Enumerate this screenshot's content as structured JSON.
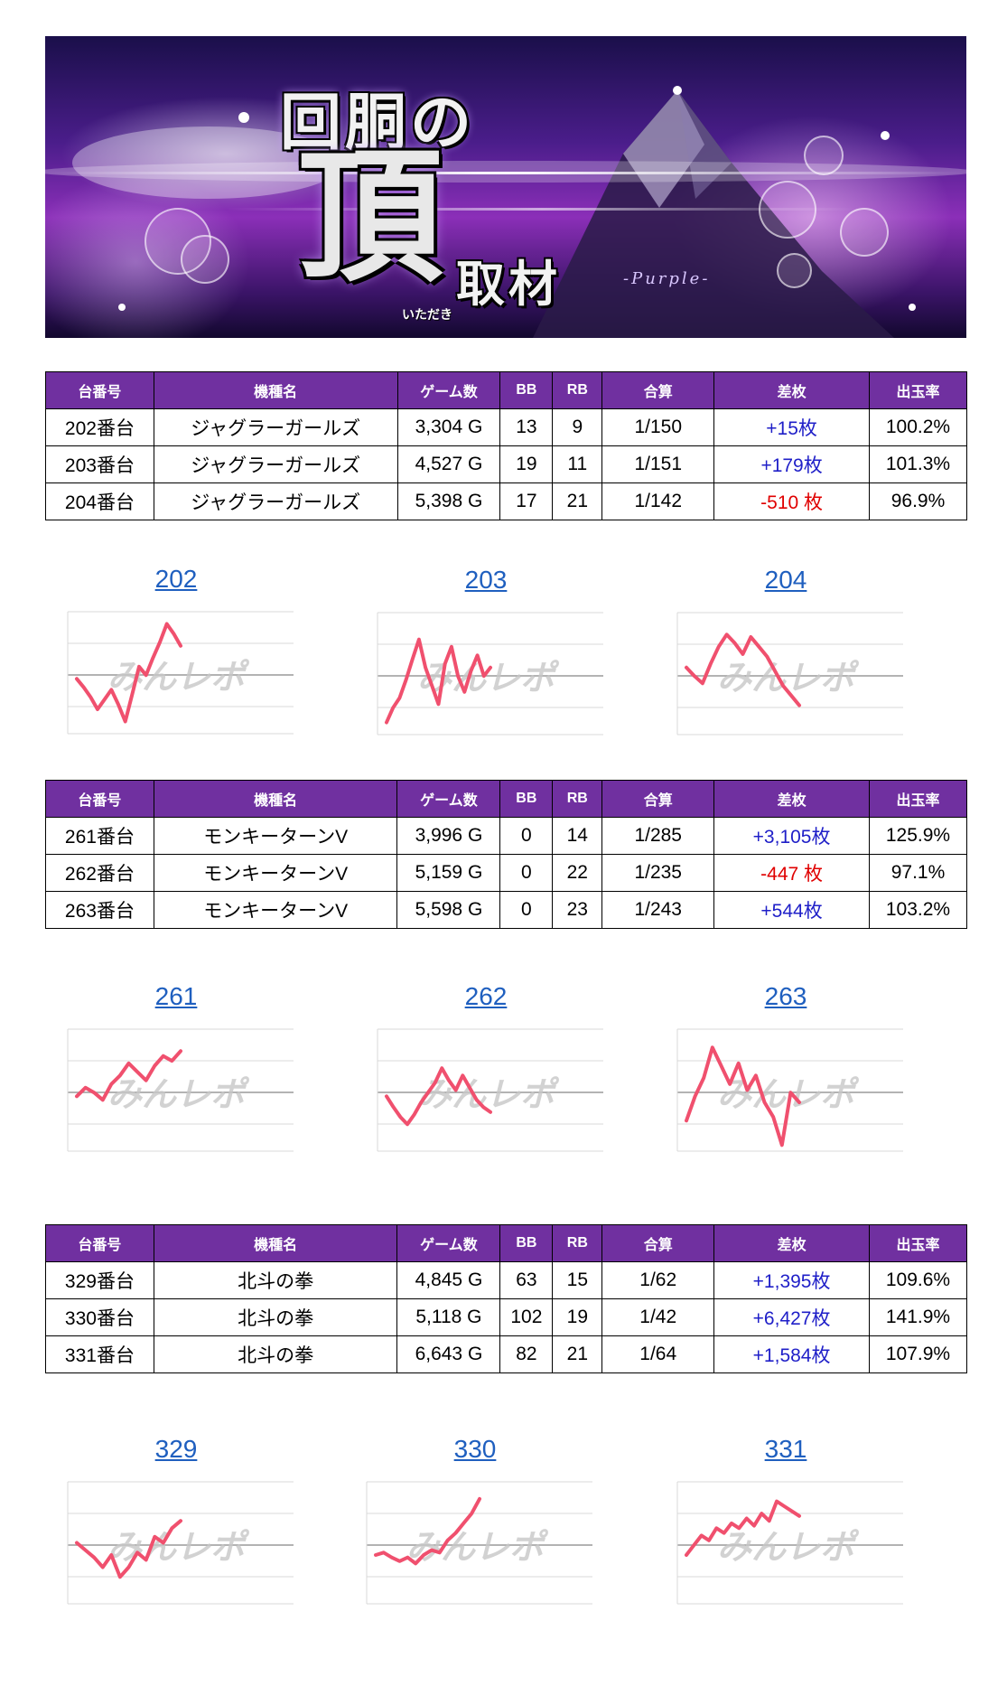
{
  "banner": {
    "title_top": "回胴の",
    "title_main": "頂",
    "title_ruby": "いただき",
    "title_sub": "取材",
    "tag": "-Purple-"
  },
  "columns": [
    "台番号",
    "機種名",
    "ゲーム数",
    "BB",
    "RB",
    "合算",
    "差枚",
    "出玉率"
  ],
  "watermark": "みんレポ",
  "colors": {
    "header": "#7030a0",
    "positive": "#1f1fc8",
    "negative": "#e00000",
    "line": "#f0506e",
    "link": "#1f5fbf"
  },
  "groups": [
    {
      "rows": [
        {
          "no": "202番台",
          "model": "ジャグラーガールズ",
          "games": "3,304 G",
          "bb": "13",
          "rb": "9",
          "total": "1/150",
          "diff": "+15枚",
          "sign": "pos",
          "rate": "100.2%"
        },
        {
          "no": "203番台",
          "model": "ジャグラーガールズ",
          "games": "4,527 G",
          "bb": "19",
          "rb": "11",
          "total": "1/151",
          "diff": "+179枚",
          "sign": "pos",
          "rate": "101.3%"
        },
        {
          "no": "204番台",
          "model": "ジャグラーガールズ",
          "games": "5,398 G",
          "bb": "17",
          "rb": "21",
          "total": "1/142",
          "diff": "-510 枚",
          "sign": "neg",
          "rate": "96.9%"
        }
      ],
      "graphs": [
        {
          "label": "202",
          "values": [
            0.45,
            0.38,
            0.3,
            0.2,
            0.28,
            0.36,
            0.24,
            0.1,
            0.32,
            0.55,
            0.48,
            0.62,
            0.75,
            0.9,
            0.82,
            0.72
          ]
        },
        {
          "label": "203",
          "values": [
            0.1,
            0.22,
            0.3,
            0.45,
            0.62,
            0.78,
            0.55,
            0.4,
            0.25,
            0.58,
            0.72,
            0.48,
            0.35,
            0.52,
            0.65,
            0.48,
            0.55
          ]
        },
        {
          "label": "204",
          "values": [
            0.55,
            0.48,
            0.42,
            0.58,
            0.72,
            0.82,
            0.75,
            0.66,
            0.8,
            0.72,
            0.64,
            0.52,
            0.4,
            0.32,
            0.24
          ]
        }
      ]
    },
    {
      "rows": [
        {
          "no": "261番台",
          "model": "モンキーターンV",
          "games": "3,996 G",
          "bb": "0",
          "rb": "14",
          "total": "1/285",
          "diff": "+3,105枚",
          "sign": "pos",
          "rate": "125.9%"
        },
        {
          "no": "262番台",
          "model": "モンキーターンV",
          "games": "5,159 G",
          "bb": "0",
          "rb": "22",
          "total": "1/235",
          "diff": "-447 枚",
          "sign": "neg",
          "rate": "97.1%"
        },
        {
          "no": "263番台",
          "model": "モンキーターンV",
          "games": "5,598 G",
          "bb": "0",
          "rb": "23",
          "total": "1/243",
          "diff": "+544枚",
          "sign": "pos",
          "rate": "103.2%"
        }
      ],
      "graphs": [
        {
          "label": "261",
          "values": [
            0.45,
            0.52,
            0.48,
            0.42,
            0.55,
            0.62,
            0.72,
            0.65,
            0.58,
            0.7,
            0.78,
            0.74,
            0.82
          ]
        },
        {
          "label": "262",
          "values": [
            0.45,
            0.36,
            0.28,
            0.22,
            0.3,
            0.4,
            0.48,
            0.56,
            0.68,
            0.58,
            0.5,
            0.62,
            0.52,
            0.42,
            0.36,
            0.32
          ]
        },
        {
          "label": "263",
          "values": [
            0.25,
            0.45,
            0.6,
            0.85,
            0.7,
            0.55,
            0.72,
            0.5,
            0.62,
            0.4,
            0.28,
            0.05,
            0.48,
            0.4
          ]
        }
      ]
    },
    {
      "rows": [
        {
          "no": "329番台",
          "model": "北斗の拳",
          "games": "4,845 G",
          "bb": "63",
          "rb": "15",
          "total": "1/62",
          "diff": "+1,395枚",
          "sign": "pos",
          "rate": "109.6%"
        },
        {
          "no": "330番台",
          "model": "北斗の拳",
          "games": "5,118 G",
          "bb": "102",
          "rb": "19",
          "total": "1/42",
          "diff": "+6,427枚",
          "sign": "pos",
          "rate": "141.9%"
        },
        {
          "no": "331番台",
          "model": "北斗の拳",
          "games": "6,643 G",
          "bb": "82",
          "rb": "21",
          "total": "1/64",
          "diff": "+1,584枚",
          "sign": "pos",
          "rate": "107.9%"
        }
      ],
      "graphs": [
        {
          "label": "329",
          "values": [
            0.5,
            0.44,
            0.38,
            0.3,
            0.4,
            0.22,
            0.3,
            0.42,
            0.36,
            0.55,
            0.5,
            0.62,
            0.68
          ]
        },
        {
          "label": "330",
          "values": [
            0.4,
            0.42,
            0.38,
            0.35,
            0.38,
            0.33,
            0.4,
            0.44,
            0.42,
            0.52,
            0.58,
            0.66,
            0.74,
            0.86
          ]
        },
        {
          "label": "331",
          "values": [
            0.4,
            0.48,
            0.56,
            0.52,
            0.62,
            0.58,
            0.66,
            0.62,
            0.7,
            0.64,
            0.74,
            0.68,
            0.84,
            0.8,
            0.76,
            0.72
          ]
        }
      ]
    }
  ]
}
